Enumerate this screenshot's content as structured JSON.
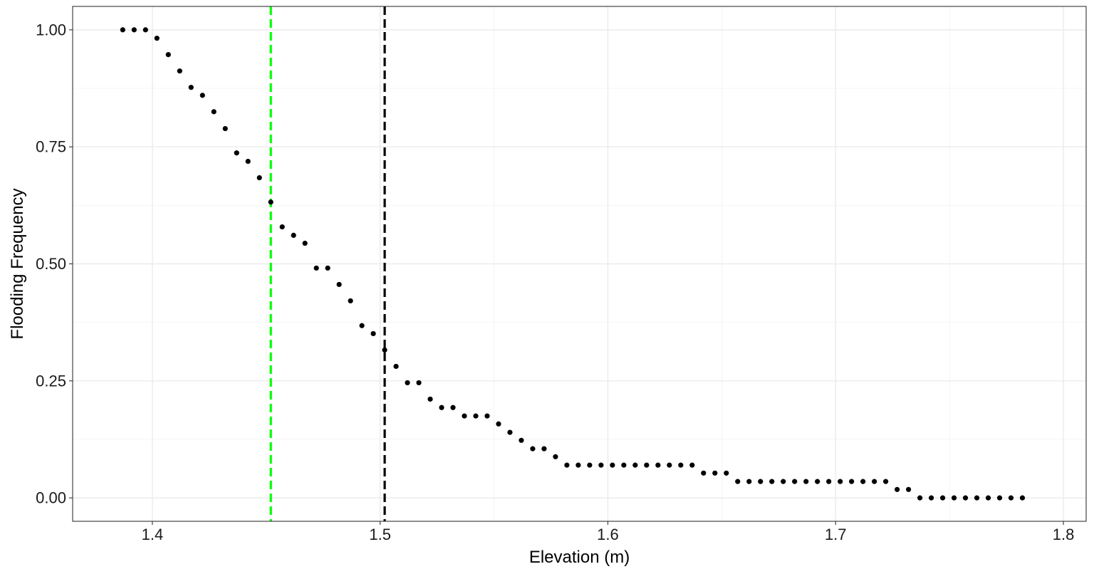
{
  "chart_data": {
    "type": "scatter",
    "title": "",
    "xlabel": "Elevation (m)",
    "ylabel": "Flooding Frequency",
    "xlim": [
      1.365,
      1.81
    ],
    "ylim": [
      -0.05,
      1.05
    ],
    "x_ticks": [
      1.4,
      1.5,
      1.6,
      1.7,
      1.8
    ],
    "x_tick_labels": [
      "1.4",
      "1.5",
      "1.6",
      "1.7",
      "1.8"
    ],
    "y_ticks": [
      0,
      0.25,
      0.5,
      0.75,
      1
    ],
    "y_tick_labels": [
      "0.00",
      "0.25",
      "0.50",
      "0.75",
      "1.00"
    ],
    "grid": true,
    "legend": "none",
    "point_color": "#000000",
    "vlines": [
      {
        "x": 1.452,
        "color": "#00ff00",
        "style": "dashed"
      },
      {
        "x": 1.502,
        "color": "#000000",
        "style": "dashed"
      }
    ],
    "points": [
      {
        "x": 1.387,
        "y": 1.0
      },
      {
        "x": 1.392,
        "y": 1.0
      },
      {
        "x": 1.397,
        "y": 1.0
      },
      {
        "x": 1.402,
        "y": 0.982
      },
      {
        "x": 1.407,
        "y": 0.947
      },
      {
        "x": 1.412,
        "y": 0.912
      },
      {
        "x": 1.417,
        "y": 0.877
      },
      {
        "x": 1.422,
        "y": 0.86
      },
      {
        "x": 1.427,
        "y": 0.825
      },
      {
        "x": 1.432,
        "y": 0.789
      },
      {
        "x": 1.437,
        "y": 0.737
      },
      {
        "x": 1.442,
        "y": 0.719
      },
      {
        "x": 1.447,
        "y": 0.684
      },
      {
        "x": 1.452,
        "y": 0.632
      },
      {
        "x": 1.457,
        "y": 0.579
      },
      {
        "x": 1.462,
        "y": 0.561
      },
      {
        "x": 1.467,
        "y": 0.544
      },
      {
        "x": 1.472,
        "y": 0.491
      },
      {
        "x": 1.477,
        "y": 0.491
      },
      {
        "x": 1.482,
        "y": 0.456
      },
      {
        "x": 1.487,
        "y": 0.421
      },
      {
        "x": 1.492,
        "y": 0.368
      },
      {
        "x": 1.497,
        "y": 0.351
      },
      {
        "x": 1.502,
        "y": 0.316
      },
      {
        "x": 1.507,
        "y": 0.281
      },
      {
        "x": 1.512,
        "y": 0.246
      },
      {
        "x": 1.517,
        "y": 0.246
      },
      {
        "x": 1.522,
        "y": 0.211
      },
      {
        "x": 1.527,
        "y": 0.193
      },
      {
        "x": 1.532,
        "y": 0.193
      },
      {
        "x": 1.537,
        "y": 0.175
      },
      {
        "x": 1.542,
        "y": 0.175
      },
      {
        "x": 1.547,
        "y": 0.175
      },
      {
        "x": 1.552,
        "y": 0.158
      },
      {
        "x": 1.557,
        "y": 0.14
      },
      {
        "x": 1.562,
        "y": 0.123
      },
      {
        "x": 1.567,
        "y": 0.105
      },
      {
        "x": 1.572,
        "y": 0.105
      },
      {
        "x": 1.577,
        "y": 0.088
      },
      {
        "x": 1.582,
        "y": 0.07
      },
      {
        "x": 1.587,
        "y": 0.07
      },
      {
        "x": 1.592,
        "y": 0.07
      },
      {
        "x": 1.597,
        "y": 0.07
      },
      {
        "x": 1.602,
        "y": 0.07
      },
      {
        "x": 1.607,
        "y": 0.07
      },
      {
        "x": 1.612,
        "y": 0.07
      },
      {
        "x": 1.617,
        "y": 0.07
      },
      {
        "x": 1.622,
        "y": 0.07
      },
      {
        "x": 1.627,
        "y": 0.07
      },
      {
        "x": 1.632,
        "y": 0.07
      },
      {
        "x": 1.637,
        "y": 0.07
      },
      {
        "x": 1.642,
        "y": 0.053
      },
      {
        "x": 1.647,
        "y": 0.053
      },
      {
        "x": 1.652,
        "y": 0.053
      },
      {
        "x": 1.657,
        "y": 0.035
      },
      {
        "x": 1.662,
        "y": 0.035
      },
      {
        "x": 1.667,
        "y": 0.035
      },
      {
        "x": 1.672,
        "y": 0.035
      },
      {
        "x": 1.677,
        "y": 0.035
      },
      {
        "x": 1.682,
        "y": 0.035
      },
      {
        "x": 1.687,
        "y": 0.035
      },
      {
        "x": 1.692,
        "y": 0.035
      },
      {
        "x": 1.697,
        "y": 0.035
      },
      {
        "x": 1.702,
        "y": 0.035
      },
      {
        "x": 1.707,
        "y": 0.035
      },
      {
        "x": 1.712,
        "y": 0.035
      },
      {
        "x": 1.717,
        "y": 0.035
      },
      {
        "x": 1.722,
        "y": 0.035
      },
      {
        "x": 1.727,
        "y": 0.018
      },
      {
        "x": 1.732,
        "y": 0.018
      },
      {
        "x": 1.737,
        "y": 0.0
      },
      {
        "x": 1.742,
        "y": 0.0
      },
      {
        "x": 1.747,
        "y": 0.0
      },
      {
        "x": 1.752,
        "y": 0.0
      },
      {
        "x": 1.757,
        "y": 0.0
      },
      {
        "x": 1.762,
        "y": 0.0
      },
      {
        "x": 1.767,
        "y": 0.0
      },
      {
        "x": 1.772,
        "y": 0.0
      },
      {
        "x": 1.777,
        "y": 0.0
      },
      {
        "x": 1.782,
        "y": 0.0
      }
    ]
  }
}
